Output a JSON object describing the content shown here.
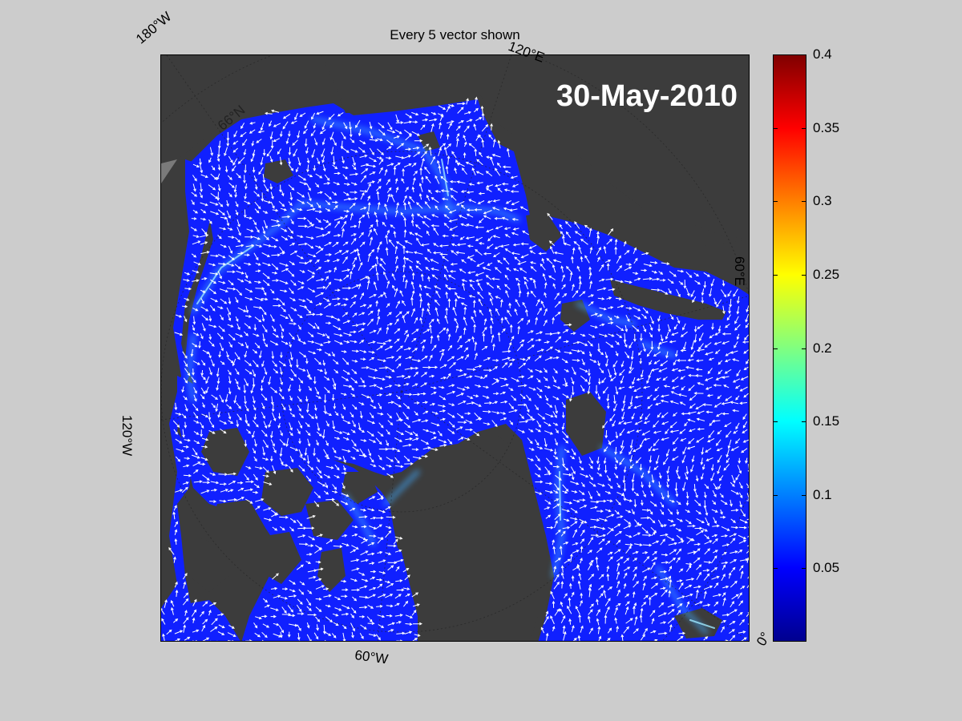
{
  "title": "Every 5 vector shown",
  "date": "30-May-2010",
  "coordinate_labels": {
    "top_left": "180°W",
    "top_mid": "120°E",
    "right": "60°E",
    "left": "120°W",
    "bottom": "60°W",
    "bottom_right": "0°",
    "inner": "66°N"
  },
  "colorbar": {
    "ticks": [
      "0.4",
      "0.35",
      "0.3",
      "0.25",
      "0.2",
      "0.15",
      "0.1",
      "0.05"
    ],
    "range": [
      0,
      0.4
    ],
    "colormap": "jet"
  },
  "colors": {
    "background": "#cccccc",
    "land": "#3c3c3c",
    "ocean_low": "#0a1cff",
    "vectors": "#ffffff"
  }
}
